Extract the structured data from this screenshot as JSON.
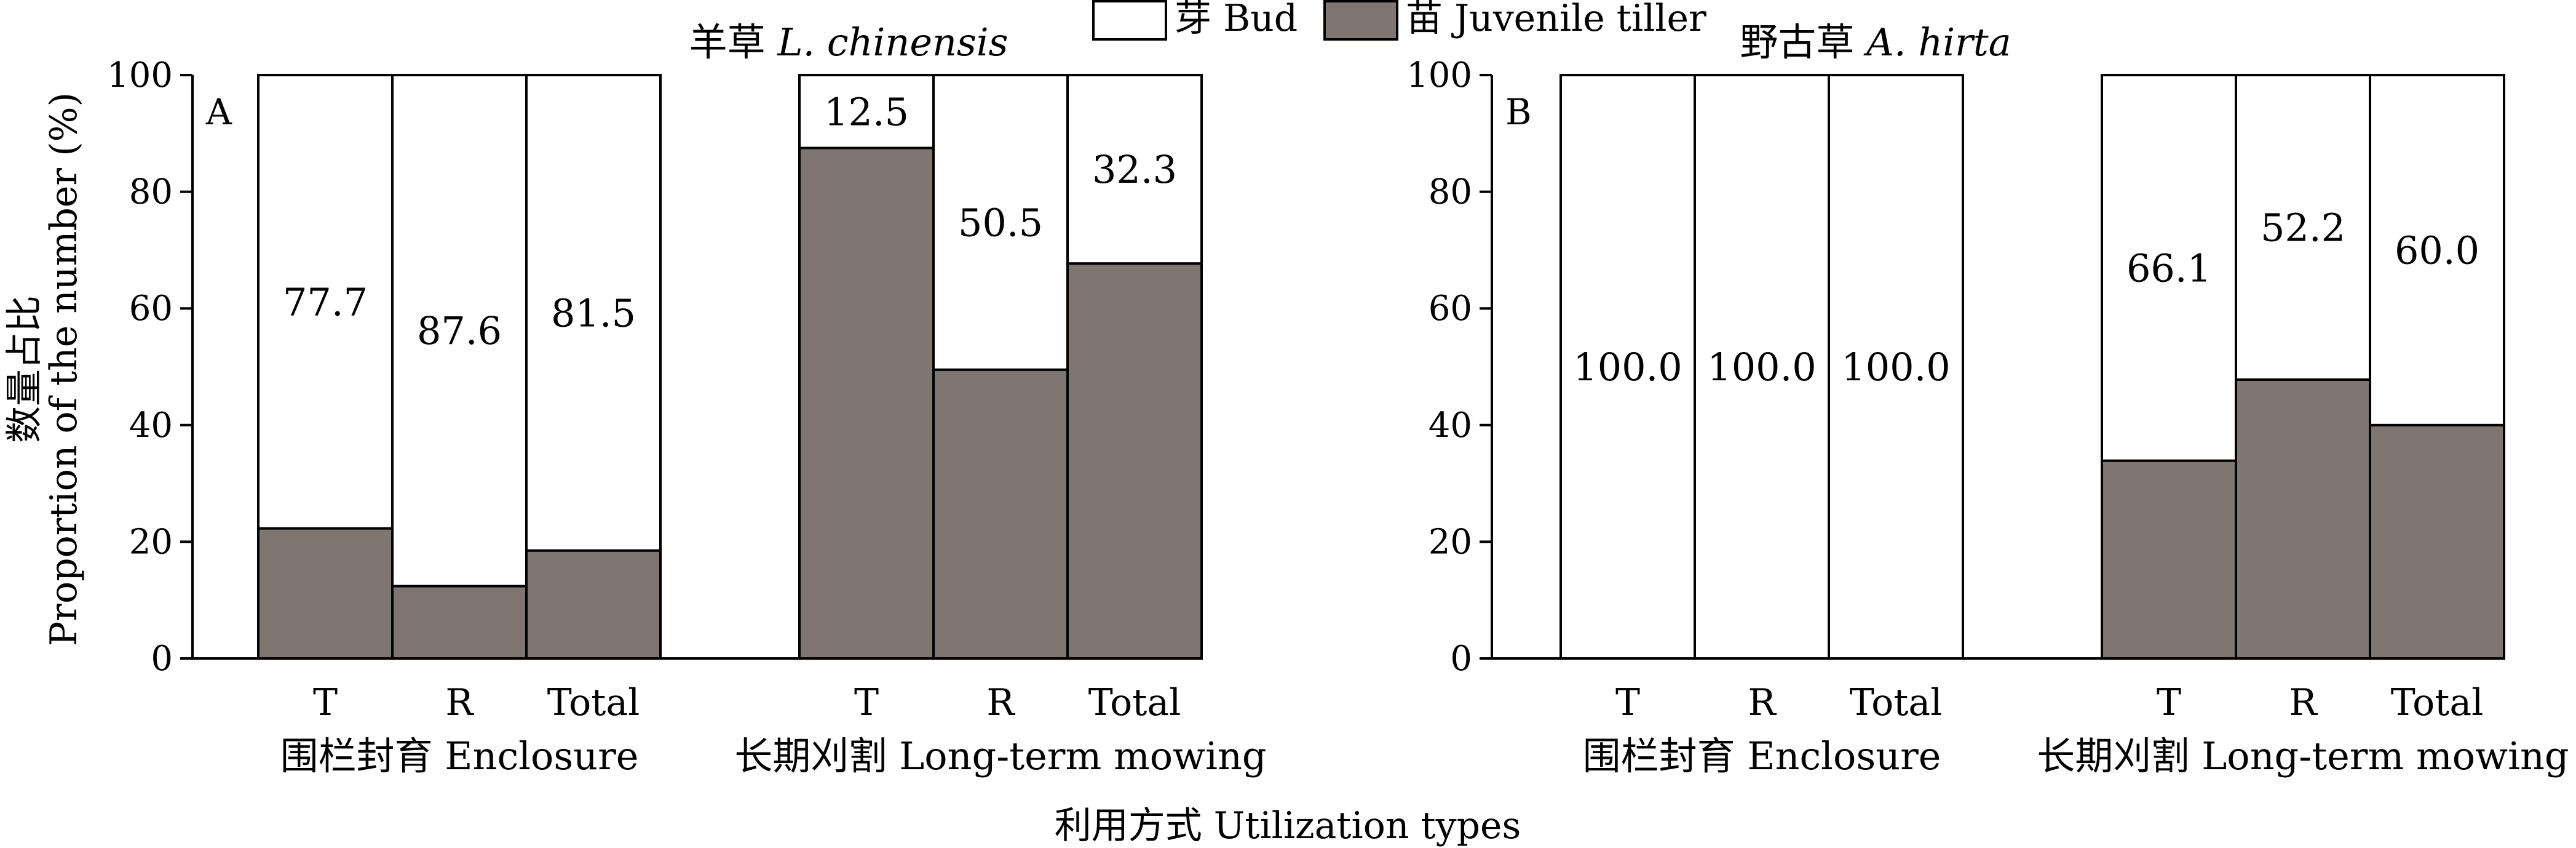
{
  "legend": {
    "items": [
      {
        "label": "芽 Bud",
        "color": "#ffffff"
      },
      {
        "label": "苗 Juvenile tiller",
        "color": "#7f7672"
      }
    ]
  },
  "axes": {
    "ylabel_cn": "数量占比",
    "ylabel_en": "Proportion of the number (%)",
    "xlabel": "利用方式 Utilization types"
  },
  "chart_data": [
    {
      "type": "bar",
      "stacked": true,
      "panel": "A",
      "title_cn": "羊草",
      "title_latin": "L. chinensis",
      "ylim": [
        0,
        100
      ],
      "yticks": [
        "0",
        "20",
        "40",
        "60",
        "80",
        "100"
      ],
      "groups": [
        {
          "label": "围栏封育 Enclosure",
          "categories": [
            "T",
            "R",
            "Total"
          ],
          "bud": [
            77.7,
            87.6,
            81.5
          ],
          "juvenile": [
            22.3,
            12.4,
            18.5
          ],
          "bud_labels": [
            "77.7",
            "87.6",
            "81.5"
          ]
        },
        {
          "label": "长期刈割 Long-term mowing",
          "categories": [
            "T",
            "R",
            "Total"
          ],
          "bud": [
            12.5,
            50.5,
            32.3
          ],
          "juvenile": [
            87.5,
            49.5,
            67.7
          ],
          "bud_labels": [
            "12.5",
            "50.5",
            "32.3"
          ]
        }
      ]
    },
    {
      "type": "bar",
      "stacked": true,
      "panel": "B",
      "title_cn": "野古草",
      "title_latin": "A. hirta",
      "ylim": [
        0,
        100
      ],
      "yticks": [
        "0",
        "20",
        "40",
        "60",
        "80",
        "100"
      ],
      "groups": [
        {
          "label": "围栏封育 Enclosure",
          "categories": [
            "T",
            "R",
            "Total"
          ],
          "bud": [
            100.0,
            100.0,
            100.0
          ],
          "juvenile": [
            0,
            0,
            0
          ],
          "bud_labels": [
            "100.0",
            "100.0",
            "100.0"
          ]
        },
        {
          "label": "长期刈割 Long-term mowing",
          "categories": [
            "T",
            "R",
            "Total"
          ],
          "bud": [
            66.1,
            52.2,
            60.0
          ],
          "juvenile": [
            33.9,
            47.8,
            40.0
          ],
          "bud_labels": [
            "66.1",
            "52.2",
            "60.0"
          ]
        }
      ]
    }
  ]
}
